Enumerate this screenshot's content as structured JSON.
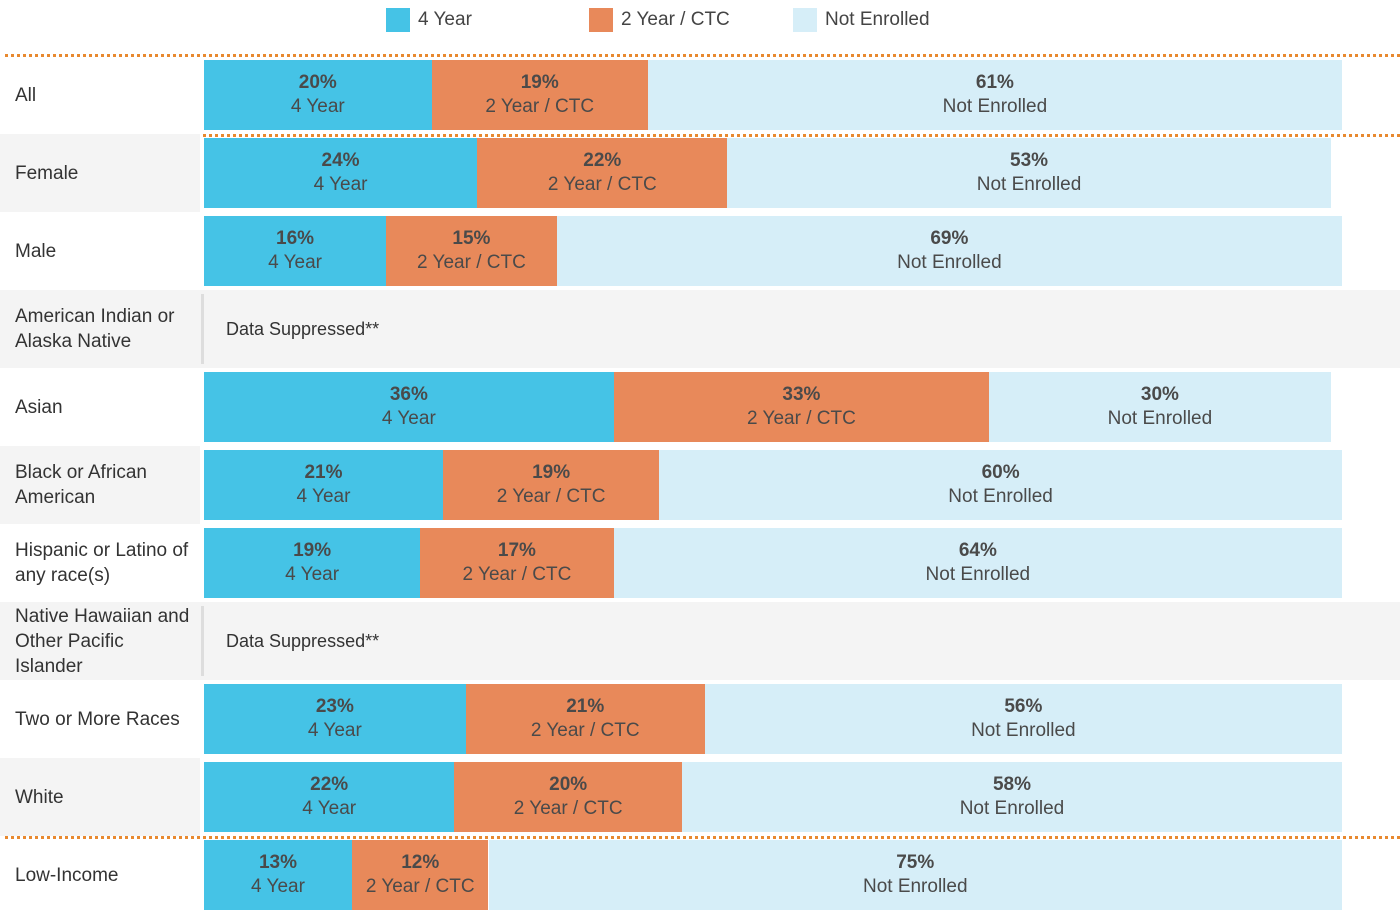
{
  "chart_data": {
    "type": "stacked-bar-horizontal",
    "categories": [
      "All",
      "Female",
      "Male",
      "American Indian or Alaska Native",
      "Asian",
      "Black or African American",
      "Hispanic or Latino of any race(s)",
      "Native Hawaiian and Other Pacific Islander",
      "Two or More Races",
      "White",
      "Low-Income"
    ],
    "series": [
      {
        "name": "4 Year",
        "color": "#45c3e6",
        "values": [
          20,
          24,
          16,
          null,
          36,
          21,
          19,
          null,
          23,
          22,
          13
        ],
        "value_labels": [
          "20%",
          "24%",
          "16%",
          null,
          "36%",
          "21%",
          "19%",
          null,
          "23%",
          "22%",
          "13%"
        ]
      },
      {
        "name": "2 Year / CTC",
        "color": "#e8895a",
        "values": [
          19,
          22,
          15,
          null,
          33,
          19,
          17,
          null,
          21,
          20,
          12
        ],
        "value_labels": [
          "19%",
          "22%",
          "15%",
          null,
          "33%",
          "19%",
          "17%",
          null,
          "21%",
          "20%",
          "12%"
        ]
      },
      {
        "name": "Not Enrolled",
        "color": "#d6eef8",
        "values": [
          61,
          53,
          69,
          null,
          30,
          60,
          64,
          null,
          56,
          58,
          75
        ],
        "value_labels": [
          "61%",
          "53%",
          "69%",
          null,
          "30%",
          "60%",
          "64%",
          null,
          "56%",
          "58%",
          "75%"
        ]
      }
    ],
    "suppressed_label": "Data Suppressed**",
    "xlim": [
      0,
      100
    ]
  }
}
